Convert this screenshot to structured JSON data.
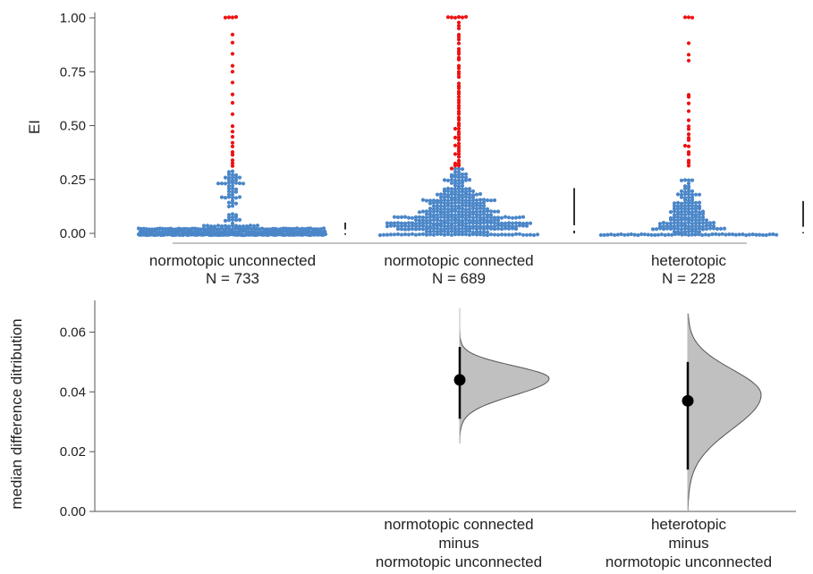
{
  "chart_data": [
    {
      "type": "scatter",
      "subtype": "swarm",
      "ylabel": "EI",
      "ylim": [
        0,
        1
      ],
      "yticks": [
        "0.00",
        "0.25",
        "0.50",
        "0.75",
        "1.00"
      ],
      "threshold": 0.3,
      "colors": {
        "below_threshold": "#4a86c8",
        "above_threshold": "#ee1111"
      },
      "groups": [
        {
          "label": "normotopic unconnected",
          "n_label": "N = 733",
          "n": 733,
          "median": 0.0,
          "high_values": [
            1.0,
            1.0,
            1.0,
            1.0,
            0.93,
            0.88,
            0.83,
            0.78,
            0.75,
            0.7,
            0.65,
            0.6,
            0.55,
            0.5,
            0.47,
            0.45,
            0.42,
            0.4,
            0.38,
            0.36,
            0.34,
            0.32,
            0.31
          ]
        },
        {
          "label": "normotopic connected",
          "n_label": "N = 689",
          "n": 689,
          "median": 0.04,
          "high_values": [
            1.0,
            1.0,
            1.0,
            1.0,
            1.0,
            1.0,
            0.98,
            0.96,
            0.95,
            0.93,
            0.91,
            0.9,
            0.88,
            0.86,
            0.85,
            0.83,
            0.82,
            0.8,
            0.78,
            0.77,
            0.75,
            0.74,
            0.72,
            0.7,
            0.69,
            0.67,
            0.66,
            0.65,
            0.63,
            0.62,
            0.6,
            0.59,
            0.58,
            0.56,
            0.55,
            0.54,
            0.52,
            0.51,
            0.5,
            0.49,
            0.48,
            0.47,
            0.46,
            0.45,
            0.44,
            0.43,
            0.42,
            0.41,
            0.4,
            0.39,
            0.38,
            0.37,
            0.36,
            0.35,
            0.34,
            0.33,
            0.32,
            0.31,
            0.31,
            0.3
          ]
        },
        {
          "label": "heterotopic",
          "n_label": "N = 228",
          "n": 228,
          "median": 0.04,
          "high_values": [
            1.0,
            1.0,
            1.0,
            0.88,
            0.83,
            0.8,
            0.65,
            0.63,
            0.6,
            0.56,
            0.52,
            0.5,
            0.48,
            0.46,
            0.44,
            0.43,
            0.41,
            0.4,
            0.38,
            0.36,
            0.34,
            0.32,
            0.31
          ]
        }
      ],
      "summary_bars": [
        {
          "group": "normotopic unconnected",
          "low": 0.0,
          "high": 0.05
        },
        {
          "group": "normotopic connected",
          "low": 0.0,
          "high": 0.21
        },
        {
          "group": "heterotopic",
          "low": 0.0,
          "high": 0.15
        }
      ]
    },
    {
      "type": "area",
      "subtype": "bootstrap-distribution",
      "ylabel": "median difference ditribution",
      "ylim": [
        0,
        0.07
      ],
      "yticks": [
        "0.00",
        "0.02",
        "0.04",
        "0.06"
      ],
      "fill": "#c0c0c0",
      "comparisons": [
        {
          "label": [
            "normotopic connected",
            "minus",
            "normotopic unconnected"
          ],
          "median": 0.044,
          "ci": [
            0.031,
            0.055
          ],
          "range": [
            0.023,
            0.068
          ],
          "peak": 0.0445,
          "spread": 0.0042
        },
        {
          "label": [
            "heterotopic",
            "minus",
            "normotopic unconnected"
          ],
          "median": 0.037,
          "ci": [
            0.014,
            0.05
          ],
          "range": [
            0.0,
            0.066
          ],
          "peak": 0.039,
          "spread": 0.0085
        }
      ]
    }
  ]
}
